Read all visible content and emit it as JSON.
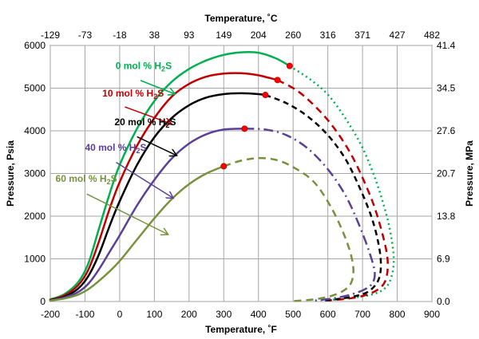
{
  "chart_data": {
    "type": "line",
    "title": "",
    "xlabel": "Temperature, ˚F",
    "ylabel": "Pressure, Psia",
    "x2label": "Temperature, ˚C",
    "y2label": "Pressure, MPa",
    "xlim": [
      -200,
      900
    ],
    "ylim": [
      0,
      6000
    ],
    "grid": true,
    "x_ticks": [
      "-200",
      "-100",
      "0",
      "100",
      "200",
      "300",
      "400",
      "500",
      "600",
      "700",
      "800",
      "900"
    ],
    "y_ticks": [
      "0",
      "1000",
      "2000",
      "3000",
      "4000",
      "5000",
      "6000"
    ],
    "x2_ticks": [
      "-129",
      "-73",
      "-18",
      "38",
      "93",
      "149",
      "204",
      "260",
      "316",
      "371",
      "427",
      "482"
    ],
    "y2_ticks": [
      "0.0",
      "6.9",
      "13.8",
      "20.7",
      "27.6",
      "34.5",
      "41.4"
    ],
    "series": [
      {
        "name": "0 mol % H2S",
        "color": "#00b050",
        "solid": [
          [
            -200,
            50
          ],
          [
            -160,
            170
          ],
          [
            -120,
            450
          ],
          [
            -90,
            900
          ],
          [
            -60,
            1700
          ],
          [
            -30,
            2500
          ],
          [
            0,
            3200
          ],
          [
            50,
            4050
          ],
          [
            100,
            4700
          ],
          [
            150,
            5150
          ],
          [
            200,
            5450
          ],
          [
            250,
            5650
          ],
          [
            300,
            5780
          ],
          [
            350,
            5840
          ],
          [
            400,
            5830
          ],
          [
            450,
            5700
          ],
          [
            490,
            5520
          ]
        ],
        "dashed": [
          [
            490,
            5520
          ],
          [
            550,
            5200
          ],
          [
            600,
            4850
          ],
          [
            650,
            4300
          ],
          [
            700,
            3600
          ],
          [
            740,
            2800
          ],
          [
            770,
            2000
          ],
          [
            785,
            1400
          ],
          [
            790,
            900
          ],
          [
            780,
            500
          ],
          [
            760,
            280
          ],
          [
            720,
            150
          ],
          [
            650,
            70
          ],
          [
            600,
            30
          ]
        ],
        "critical_point": [
          490,
          5520
        ],
        "label_at": [
          -12,
          5450
        ],
        "arrow_from": [
          60,
          5180
        ],
        "arrow_to": [
          160,
          4860
        ]
      },
      {
        "name": "10 mol % H2S",
        "color": "#c00000",
        "solid": [
          [
            -200,
            40
          ],
          [
            -160,
            140
          ],
          [
            -120,
            380
          ],
          [
            -90,
            750
          ],
          [
            -60,
            1400
          ],
          [
            -30,
            2150
          ],
          [
            0,
            2800
          ],
          [
            50,
            3650
          ],
          [
            100,
            4300
          ],
          [
            150,
            4800
          ],
          [
            200,
            5100
          ],
          [
            250,
            5270
          ],
          [
            300,
            5340
          ],
          [
            350,
            5350
          ],
          [
            400,
            5300
          ],
          [
            455,
            5190
          ]
        ],
        "dashed": [
          [
            455,
            5190
          ],
          [
            510,
            4950
          ],
          [
            560,
            4600
          ],
          [
            610,
            4150
          ],
          [
            660,
            3550
          ],
          [
            700,
            2900
          ],
          [
            735,
            2200
          ],
          [
            760,
            1500
          ],
          [
            772,
            1000
          ],
          [
            770,
            600
          ],
          [
            755,
            350
          ],
          [
            720,
            180
          ],
          [
            670,
            80
          ],
          [
            600,
            25
          ]
        ],
        "critical_point": [
          455,
          5190
        ],
        "label_at": [
          -50,
          4800
        ],
        "arrow_from": [
          15,
          4560
        ],
        "arrow_to": [
          150,
          4160
        ]
      },
      {
        "name": "20 mol % H2S",
        "color": "#000000",
        "solid": [
          [
            -200,
            30
          ],
          [
            -160,
            110
          ],
          [
            -120,
            300
          ],
          [
            -90,
            600
          ],
          [
            -60,
            1100
          ],
          [
            -30,
            1750
          ],
          [
            0,
            2350
          ],
          [
            50,
            3200
          ],
          [
            100,
            3850
          ],
          [
            150,
            4300
          ],
          [
            200,
            4600
          ],
          [
            250,
            4780
          ],
          [
            300,
            4860
          ],
          [
            350,
            4880
          ],
          [
            400,
            4860
          ],
          [
            420,
            4840
          ]
        ],
        "dashed": [
          [
            420,
            4840
          ],
          [
            480,
            4650
          ],
          [
            540,
            4350
          ],
          [
            600,
            3900
          ],
          [
            650,
            3350
          ],
          [
            690,
            2700
          ],
          [
            725,
            2000
          ],
          [
            745,
            1400
          ],
          [
            753,
            900
          ],
          [
            748,
            550
          ],
          [
            730,
            320
          ],
          [
            700,
            170
          ],
          [
            640,
            70
          ],
          [
            580,
            20
          ]
        ],
        "critical_point": [
          420,
          4840
        ],
        "label_at": [
          -15,
          4130
        ],
        "arrow_from": [
          50,
          3860
        ],
        "arrow_to": [
          165,
          3420
        ]
      },
      {
        "name": "40 mol % H2S",
        "color": "#5b4096",
        "solid": [
          [
            -200,
            25
          ],
          [
            -160,
            90
          ],
          [
            -120,
            220
          ],
          [
            -90,
            420
          ],
          [
            -60,
            750
          ],
          [
            -30,
            1150
          ],
          [
            0,
            1550
          ],
          [
            50,
            2250
          ],
          [
            100,
            2850
          ],
          [
            150,
            3350
          ],
          [
            200,
            3700
          ],
          [
            250,
            3920
          ],
          [
            300,
            4030
          ],
          [
            360,
            4050
          ]
        ],
        "dashed": [
          [
            360,
            4050
          ],
          [
            420,
            4030
          ],
          [
            480,
            3900
          ],
          [
            540,
            3600
          ],
          [
            600,
            3100
          ],
          [
            650,
            2500
          ],
          [
            690,
            1800
          ],
          [
            720,
            1150
          ],
          [
            735,
            700
          ],
          [
            730,
            450
          ],
          [
            710,
            300
          ],
          [
            670,
            170
          ],
          [
            620,
            80
          ],
          [
            560,
            20
          ]
        ],
        "critical_point": [
          360,
          4050
        ],
        "label_at": [
          -100,
          3530
        ],
        "arrow_from": [
          -10,
          3260
        ],
        "arrow_to": [
          155,
          2420
        ]
      },
      {
        "name": "60 mol % H2S",
        "color": "#76923c",
        "solid": [
          [
            -200,
            20
          ],
          [
            -160,
            70
          ],
          [
            -120,
            160
          ],
          [
            -90,
            290
          ],
          [
            -60,
            480
          ],
          [
            -30,
            700
          ],
          [
            0,
            950
          ],
          [
            50,
            1450
          ],
          [
            100,
            1950
          ],
          [
            150,
            2400
          ],
          [
            200,
            2750
          ],
          [
            250,
            3000
          ],
          [
            300,
            3170
          ]
        ],
        "dashed": [
          [
            300,
            3170
          ],
          [
            350,
            3300
          ],
          [
            400,
            3360
          ],
          [
            450,
            3320
          ],
          [
            500,
            3150
          ],
          [
            560,
            2800
          ],
          [
            610,
            2200
          ],
          [
            650,
            1500
          ],
          [
            672,
            900
          ],
          [
            670,
            500
          ],
          [
            650,
            280
          ],
          [
            610,
            130
          ],
          [
            560,
            50
          ],
          [
            500,
            10
          ]
        ],
        "critical_point": [
          300,
          3170
        ],
        "label_at": [
          -185,
          2800
        ],
        "arrow_from": [
          -95,
          2520
        ],
        "arrow_to": [
          140,
          1570
        ]
      }
    ]
  }
}
